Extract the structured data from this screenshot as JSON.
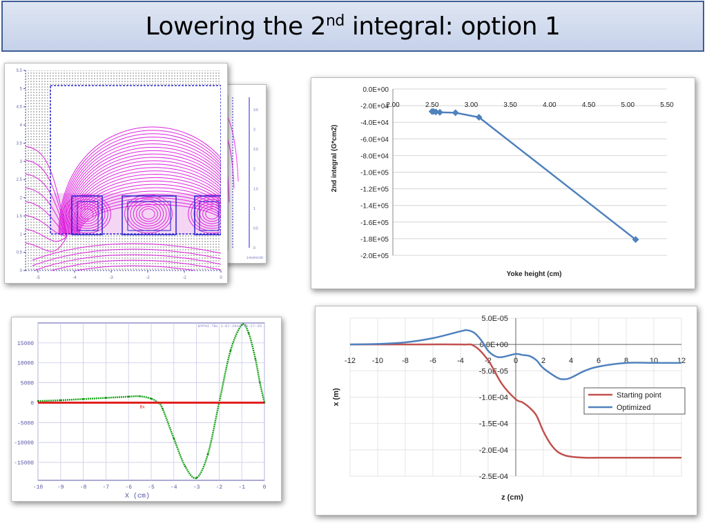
{
  "title": {
    "main": "Lowering the 2",
    "sup": "nd",
    "rest": " integral: option 1"
  },
  "chart_data": [
    {
      "type": "heatmap",
      "xticks": [
        "-5",
        "-4",
        "-3",
        "-2",
        "-1",
        "0"
      ],
      "yticks": [
        "0",
        "0.5",
        "1",
        "1.5",
        "2",
        "2.5",
        "3",
        "3.5",
        "4",
        "4.5",
        "5",
        "5.5"
      ],
      "back_yticks": [
        "0",
        "0.5",
        "1",
        "1.5",
        "2",
        "2.5",
        "3",
        "3.5"
      ],
      "footer": "14x84x30"
    },
    {
      "type": "line",
      "ylabel": "2nd integral (G*cm2)",
      "xlabel": "Yoke height (cm)",
      "xticks": [
        "2.00",
        "2.50",
        "3.00",
        "3.50",
        "4.00",
        "4.50",
        "5.00",
        "5.50"
      ],
      "yticks": [
        "0.0E+00",
        "-2.0E+04",
        "-4.0E+04",
        "-6.0E+04",
        "-8.0E+04",
        "-1.0E+05",
        "-1.2E+05",
        "-1.4E+05",
        "-1.6E+05",
        "-1.8E+05",
        "-2.0E+05"
      ],
      "xlim": [
        2.0,
        5.5
      ],
      "ylim": [
        -200000,
        0
      ],
      "x": [
        2.5,
        2.52,
        2.55,
        2.6,
        2.8,
        3.1,
        5.1
      ],
      "y": [
        -27000,
        -27000,
        -27500,
        -28000,
        -28500,
        -34000,
        -181000
      ],
      "color": "#4f81bd"
    },
    {
      "type": "line",
      "xlabel": "X (cm)",
      "xticks": [
        "-10",
        "-9",
        "-8",
        "-7",
        "-6",
        "-5",
        "-4",
        "-3",
        "-2",
        "-1",
        "0"
      ],
      "yticks": [
        "15000",
        "10000",
        "5000",
        "0",
        "-5000",
        "-10000",
        "-15000"
      ],
      "header": "BYPHI.TBL  2-07-2019 15:27:35",
      "marker_label": "Bx",
      "xlim": [
        -10,
        0
      ],
      "ylim": [
        -19500,
        20000
      ],
      "series": [
        {
          "x": [
            -10,
            -9,
            -8,
            -7,
            -6,
            -5.5,
            -5,
            -4.7,
            -4.5,
            -4,
            -3.5,
            -3,
            -2.5,
            -2,
            -1.5,
            -1,
            -0.7,
            -0.4,
            -0.2,
            0
          ],
          "values": [
            400,
            600,
            900,
            1200,
            1500,
            1600,
            1000,
            0,
            -1500,
            -9000,
            -16000,
            -18900,
            -13000,
            0,
            13000,
            19500,
            17500,
            11000,
            5000,
            0
          ],
          "color": "#1aa31a"
        },
        {
          "x": [
            -10,
            0
          ],
          "values": [
            0,
            0
          ],
          "color": "#e02020"
        }
      ]
    },
    {
      "type": "line",
      "xlabel": "z (cm)",
      "ylabel": "x (m)",
      "xticks": [
        "-12",
        "-10",
        "-8",
        "-6",
        "-4",
        "-2",
        "0",
        "2",
        "4",
        "6",
        "8",
        "10",
        "12"
      ],
      "yticks": [
        "5.0E-05",
        "0.0E+00",
        "-5.0E-05",
        "-1.0E-04",
        "-1.5E-04",
        "-2.0E-04",
        "-2.5E-04"
      ],
      "xlim": [
        -12,
        12
      ],
      "ylim": [
        -0.00025,
        5e-05
      ],
      "legend": "right",
      "series": [
        {
          "name": "Starting point",
          "color": "#c0504d",
          "x": [
            -12,
            -8,
            -4,
            -3,
            -2,
            -1,
            0,
            0.5,
            1,
            1.5,
            2,
            2.5,
            3,
            3.5,
            4,
            5,
            6,
            8,
            10,
            12
          ],
          "values": [
            0,
            0,
            0,
            -3e-06,
            -3e-05,
            -7.5e-05,
            -0.000104,
            -0.00011,
            -0.00012,
            -0.000135,
            -0.000165,
            -0.000188,
            -0.000203,
            -0.00021,
            -0.000213,
            -0.000215,
            -0.000215,
            -0.000215,
            -0.000215,
            -0.000215
          ]
        },
        {
          "name": "Optimized",
          "color": "#4f81bd",
          "x": [
            -12,
            -10,
            -8,
            -6,
            -4,
            -3.5,
            -3,
            -2.5,
            -2,
            -1.5,
            -1,
            0,
            0.5,
            1,
            1.5,
            2,
            3,
            3.5,
            4,
            5,
            6,
            8,
            10,
            12
          ],
          "values": [
            0,
            1e-06,
            4e-06,
            1.2e-05,
            2.5e-05,
            2.7e-05,
            2.2e-05,
            8e-06,
            -1.2e-05,
            -2.2e-05,
            -2.4e-05,
            -1.8e-05,
            -2e-05,
            -2.2e-05,
            -3e-05,
            -4.5e-05,
            -6.3e-05,
            -6.6e-05,
            -6.3e-05,
            -5e-05,
            -4.2e-05,
            -3.5e-05,
            -3.5e-05,
            -3.5e-05
          ]
        }
      ]
    }
  ]
}
